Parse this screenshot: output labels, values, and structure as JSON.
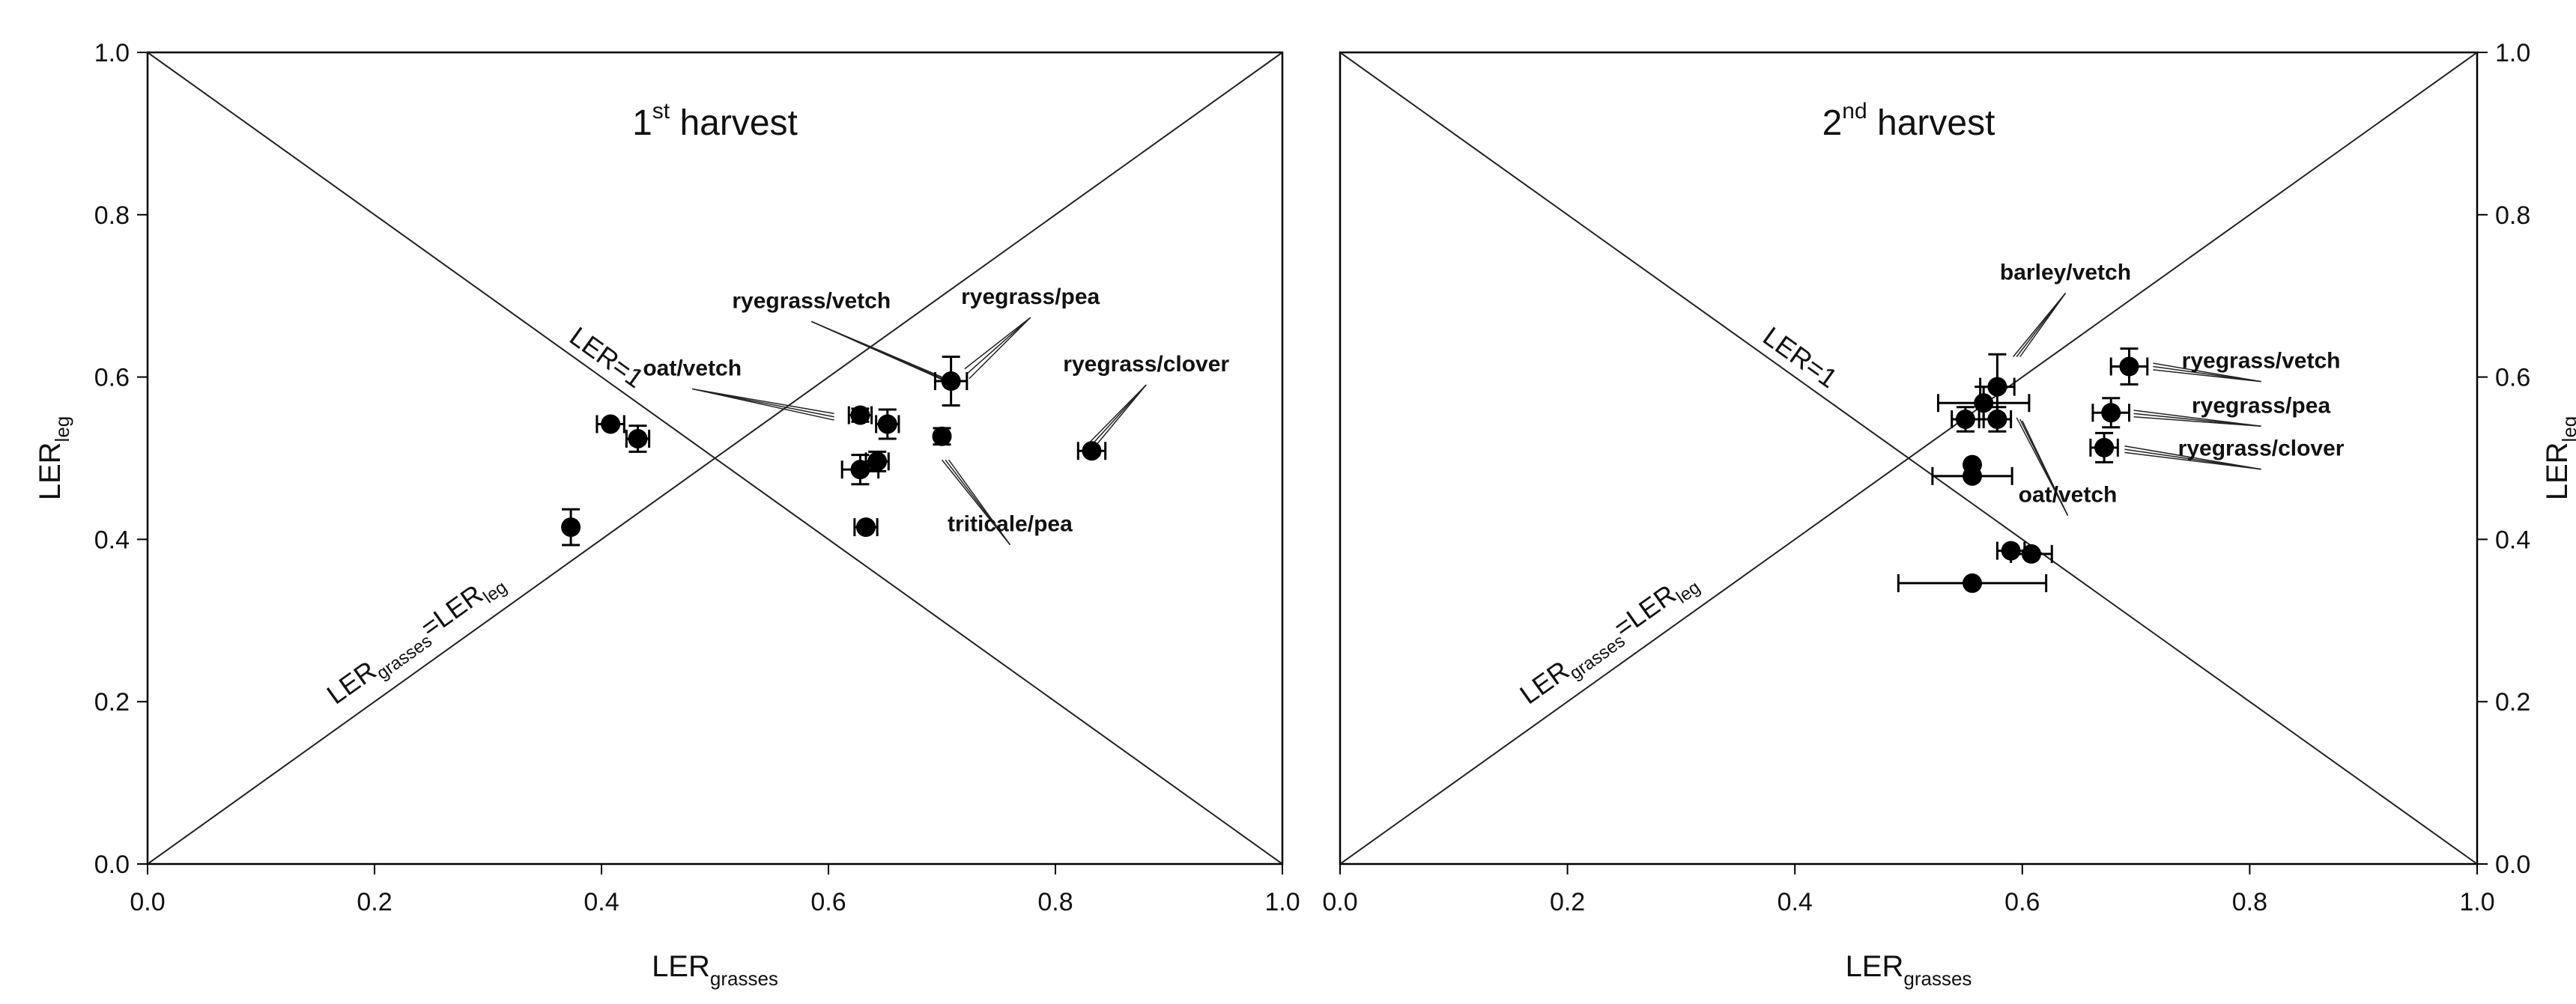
{
  "chart_data": [
    {
      "type": "scatter",
      "title_main": "1",
      "title_sup": "st",
      "title_rest": " harvest",
      "xlabel_main": "LER",
      "xlabel_sub": "grasses",
      "ylabel_main": "LER",
      "ylabel_sub": "leg",
      "xlim": [
        0,
        1
      ],
      "ylim": [
        0,
        1
      ],
      "xticks": [
        "0.0",
        "0.2",
        "0.4",
        "0.6",
        "0.8",
        "1.0"
      ],
      "yticks": [
        "0.0",
        "0.2",
        "0.4",
        "0.6",
        "0.8",
        "1.0"
      ],
      "grid": false,
      "marker_color": "#000000",
      "points": [
        {
          "x": 0.373,
          "y": 0.415,
          "xerr": 0.0,
          "yerr": 0.022
        },
        {
          "x": 0.408,
          "y": 0.542,
          "xerr": 0.012,
          "yerr": 0.0
        },
        {
          "x": 0.432,
          "y": 0.524,
          "xerr": 0.01,
          "yerr": 0.016
        },
        {
          "x": 0.628,
          "y": 0.553,
          "xerr": 0.01,
          "yerr": 0.008
        },
        {
          "x": 0.652,
          "y": 0.542,
          "xerr": 0.01,
          "yerr": 0.018
        },
        {
          "x": 0.628,
          "y": 0.486,
          "xerr": 0.016,
          "yerr": 0.018
        },
        {
          "x": 0.643,
          "y": 0.496,
          "xerr": 0.01,
          "yerr": 0.012
        },
        {
          "x": 0.633,
          "y": 0.415,
          "xerr": 0.01,
          "yerr": 0.0
        },
        {
          "x": 0.7,
          "y": 0.527,
          "xerr": 0.0,
          "yerr": 0.01
        },
        {
          "x": 0.708,
          "y": 0.595,
          "xerr": 0.014,
          "yerr": 0.03
        },
        {
          "x": 0.832,
          "y": 0.509,
          "xerr": 0.012,
          "yerr": 0.0
        }
      ],
      "annotations": [
        {
          "text": "ryegrass/vetch",
          "label_x": 0.585,
          "label_y": 0.685,
          "targets": [
            [
              0.7,
              0.6
            ],
            [
              0.704,
              0.596
            ],
            [
              0.708,
              0.592
            ]
          ]
        },
        {
          "text": "ryegrass/pea",
          "label_x": 0.778,
          "label_y": 0.69,
          "targets": [
            [
              0.72,
              0.61
            ],
            [
              0.722,
              0.604
            ],
            [
              0.724,
              0.598
            ]
          ]
        },
        {
          "text": "oat/vetch",
          "label_x": 0.48,
          "label_y": 0.602,
          "targets": [
            [
              0.605,
              0.555
            ],
            [
              0.605,
              0.551
            ],
            [
              0.605,
              0.547
            ]
          ]
        },
        {
          "text": "ryegrass/clover",
          "label_x": 0.88,
          "label_y": 0.607,
          "targets": [
            [
              0.829,
              0.518
            ],
            [
              0.833,
              0.518
            ],
            [
              0.837,
              0.518
            ]
          ]
        },
        {
          "text": "triticale/pea",
          "label_x": 0.76,
          "label_y": 0.41,
          "targets": [
            [
              0.7,
              0.498
            ],
            [
              0.703,
              0.498
            ],
            [
              0.706,
              0.498
            ]
          ]
        }
      ],
      "diag_label_main": "LER=1",
      "diag2_label_main": "LER",
      "diag2_label_sub1": "grasses",
      "diag2_label_eq": "=LER",
      "diag2_label_sub2": "leg"
    },
    {
      "type": "scatter",
      "title_main": "2",
      "title_sup": "nd",
      "title_rest": " harvest",
      "xlabel_main": "LER",
      "xlabel_sub": "grasses",
      "ylabel_main": "LER",
      "ylabel_sub": "leg",
      "xlim": [
        0,
        1
      ],
      "ylim": [
        0,
        1
      ],
      "xticks": [
        "0.0",
        "0.2",
        "0.4",
        "0.6",
        "0.8",
        "1.0"
      ],
      "yticks": [
        "0.0",
        "0.2",
        "0.4",
        "0.6",
        "0.8",
        "1.0"
      ],
      "grid": false,
      "marker_color": "#000000",
      "points": [
        {
          "x": 0.578,
          "y": 0.588,
          "xerr": 0.015,
          "yerr": 0.04
        },
        {
          "x": 0.566,
          "y": 0.568,
          "xerr": 0.04,
          "yerr": 0.02
        },
        {
          "x": 0.55,
          "y": 0.548,
          "xerr": 0.012,
          "yerr": 0.015
        },
        {
          "x": 0.578,
          "y": 0.548,
          "xerr": 0.012,
          "yerr": 0.015
        },
        {
          "x": 0.556,
          "y": 0.492,
          "xerr": 0.0,
          "yerr": 0.0
        },
        {
          "x": 0.556,
          "y": 0.478,
          "xerr": 0.035,
          "yerr": 0.0
        },
        {
          "x": 0.694,
          "y": 0.613,
          "xerr": 0.016,
          "yerr": 0.022
        },
        {
          "x": 0.678,
          "y": 0.556,
          "xerr": 0.016,
          "yerr": 0.018
        },
        {
          "x": 0.672,
          "y": 0.513,
          "xerr": 0.012,
          "yerr": 0.018
        },
        {
          "x": 0.59,
          "y": 0.386,
          "xerr": 0.012,
          "yerr": 0.0
        },
        {
          "x": 0.608,
          "y": 0.382,
          "xerr": 0.018,
          "yerr": 0.0
        },
        {
          "x": 0.556,
          "y": 0.346,
          "xerr": 0.065,
          "yerr": 0.0
        }
      ],
      "annotations": [
        {
          "text": "barley/vetch",
          "label_x": 0.638,
          "label_y": 0.72,
          "targets": [
            [
              0.592,
              0.625
            ],
            [
              0.595,
              0.625
            ],
            [
              0.598,
              0.625
            ]
          ]
        },
        {
          "text": "ryegrass/vetch",
          "label_x": 0.81,
          "label_y": 0.611,
          "targets": [
            [
              0.715,
              0.617
            ],
            [
              0.715,
              0.613
            ],
            [
              0.715,
              0.609
            ]
          ]
        },
        {
          "text": "ryegrass/pea",
          "label_x": 0.81,
          "label_y": 0.556,
          "targets": [
            [
              0.698,
              0.559
            ],
            [
              0.698,
              0.555
            ],
            [
              0.698,
              0.551
            ]
          ]
        },
        {
          "text": "ryegrass/clover",
          "label_x": 0.81,
          "label_y": 0.503,
          "targets": [
            [
              0.69,
              0.515
            ],
            [
              0.69,
              0.511
            ],
            [
              0.69,
              0.507
            ]
          ]
        },
        {
          "text": "oat/vetch",
          "label_x": 0.64,
          "label_y": 0.446,
          "targets": [
            [
              0.595,
              0.55
            ],
            [
              0.598,
              0.548
            ],
            [
              0.6,
              0.546
            ]
          ]
        }
      ],
      "diag_label_main": "LER=1",
      "diag2_label_main": "LER",
      "diag2_label_sub1": "grasses",
      "diag2_label_eq": "=LER",
      "diag2_label_sub2": "leg"
    }
  ]
}
